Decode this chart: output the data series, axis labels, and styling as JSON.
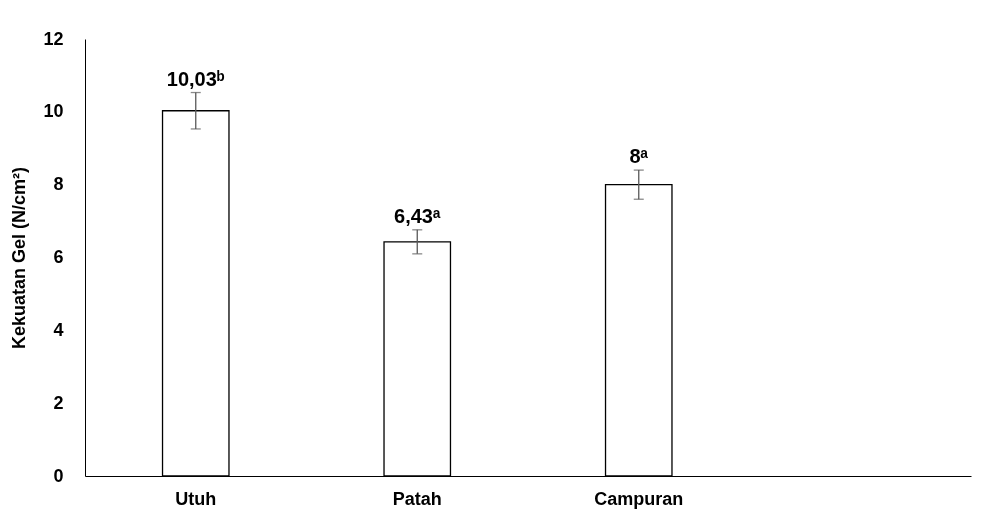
{
  "chart_data": {
    "type": "bar",
    "ylabel": "Kekuatan Gel (N/cm²)",
    "categories": [
      "Utuh",
      "Patah",
      "Campuran",
      null
    ],
    "values": [
      10.03,
      6.43,
      8,
      null
    ],
    "errors": [
      0.5,
      0.33,
      0.4,
      null
    ],
    "value_labels": [
      "10,03ᵇ",
      "6,43ᵃ",
      "8ᵃ",
      null
    ],
    "color": "#ffffff",
    "ylim": [
      0,
      12
    ],
    "yticks": [
      0,
      2,
      4,
      6,
      8,
      10,
      12
    ],
    "grid": false
  }
}
